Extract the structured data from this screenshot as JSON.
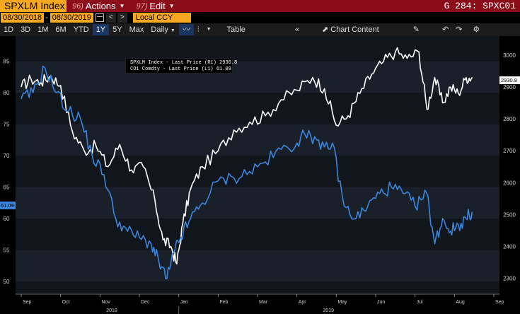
{
  "titlebar": {
    "security": "SPXLM Index",
    "actions_num": "96)",
    "actions_label": "Actions",
    "edit_num": "97)",
    "edit_label": "Edit",
    "chart_code": "G 284: SPXC01"
  },
  "daterow": {
    "start_date": "08/30/2018",
    "end_date": "08/30/2019",
    "prev": "<",
    "next": ">",
    "currency": "Local CCY"
  },
  "toolbar": {
    "periods": [
      "1D",
      "3D",
      "1M",
      "6M",
      "YTD",
      "1Y",
      "5Y",
      "Max"
    ],
    "active_period": "1Y",
    "frequency": "Daily",
    "table_label": "Table",
    "chart_content_label": "Chart Content"
  },
  "colors": {
    "spx": "#ffffff",
    "co1": "#3a86de",
    "accent": "#f6a821",
    "titlebar": "#8b0d1a"
  },
  "legend": {
    "series1": "SPXLM Index - Last Price (R1) 2930.8",
    "series2": "CO1 Comdty - Last Price (L1) 61.09"
  },
  "tags": {
    "left": "61.09",
    "right": "2930.8"
  },
  "chart_data": {
    "type": "line",
    "left_axis": {
      "ticks": [
        50,
        55,
        60,
        65,
        70,
        75,
        80,
        85
      ],
      "range": [
        48,
        89
      ]
    },
    "right_axis": {
      "ticks": [
        2300,
        2400,
        2500,
        2600,
        2700,
        2800,
        2900,
        3000
      ],
      "range": [
        2250,
        3060
      ]
    },
    "x_ticks": [
      "Sep",
      "Oct",
      "Nov",
      "Dec",
      "Jan",
      "Feb",
      "Mar",
      "Apr",
      "May",
      "Jun",
      "Jul",
      "Aug",
      "Sep"
    ],
    "year_labels": [
      "2018",
      "2019"
    ],
    "series": [
      {
        "name": "SPXLM Index - Last Price (R1) 2930.8",
        "axis": "right",
        "x": [
          0,
          0.25,
          0.5,
          0.75,
          1.0,
          1.3,
          1.6,
          1.9,
          2.2,
          2.5,
          2.8,
          3.1,
          3.4,
          3.6,
          3.8,
          3.95,
          4.1,
          4.3,
          4.6,
          5.0,
          5.4,
          5.8,
          6.2,
          6.6,
          7.0,
          7.4,
          7.7,
          8.0,
          8.3,
          8.6,
          8.9,
          9.2,
          9.5,
          9.8,
          10.1,
          10.3,
          10.5,
          10.7,
          10.9,
          11.1,
          11.3,
          11.45
        ],
        "y": [
          2900,
          2925,
          2915,
          2935,
          2905,
          2760,
          2700,
          2715,
          2650,
          2720,
          2640,
          2650,
          2540,
          2420,
          2400,
          2345,
          2470,
          2580,
          2650,
          2700,
          2765,
          2790,
          2810,
          2860,
          2890,
          2930,
          2895,
          2780,
          2810,
          2880,
          2940,
          2980,
          3010,
          2990,
          3010,
          2830,
          2930,
          2850,
          2900,
          2880,
          2930,
          2930.8
        ]
      },
      {
        "name": "CO1 Comdty - Last Price (L1) 61.09",
        "axis": "left",
        "x": [
          0,
          0.3,
          0.6,
          0.9,
          1.2,
          1.5,
          1.8,
          2.1,
          2.4,
          2.7,
          3.0,
          3.3,
          3.5,
          3.7,
          3.9,
          4.05,
          4.3,
          4.6,
          5.0,
          5.4,
          5.8,
          6.2,
          6.6,
          7.0,
          7.3,
          7.6,
          7.9,
          8.2,
          8.5,
          8.8,
          9.1,
          9.4,
          9.7,
          10.0,
          10.3,
          10.5,
          10.7,
          10.9,
          11.1,
          11.3,
          11.45
        ],
        "y": [
          79,
          80,
          84,
          80,
          77,
          76,
          70,
          67,
          60,
          58,
          57,
          56,
          53,
          50.5,
          55,
          57,
          60,
          62.5,
          66,
          66.5,
          67.5,
          69,
          71,
          72,
          74,
          71,
          72,
          62,
          60,
          62,
          64,
          65,
          64,
          62,
          64,
          56,
          60,
          58,
          59,
          60,
          61.09
        ]
      }
    ],
    "grid": "horizontal bands",
    "legend_position": "top-left"
  }
}
